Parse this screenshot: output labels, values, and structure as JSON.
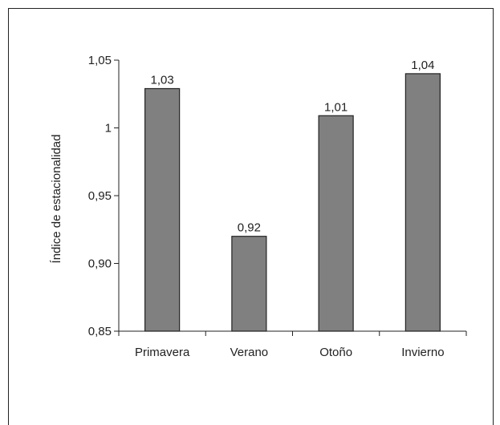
{
  "chart_data": {
    "type": "bar",
    "categories": [
      "Primavera",
      "Verano",
      "Otoño",
      "Invierno"
    ],
    "values": [
      1.029,
      0.92,
      1.009,
      1.04
    ],
    "data_labels": [
      "1,03",
      "0,92",
      "1,01",
      "1,04"
    ],
    "ylabel": "Índice de estacionalidad",
    "xlabel": "",
    "ylim": [
      0.85,
      1.05
    ],
    "yticks": [
      0.85,
      0.9,
      0.95,
      1.0,
      1.05
    ],
    "ytick_labels": [
      "0,85",
      "0,90",
      "0,95",
      "1",
      "1,05"
    ],
    "grid": false,
    "bar_color": "#808080",
    "bar_edge_color": "#222222"
  }
}
